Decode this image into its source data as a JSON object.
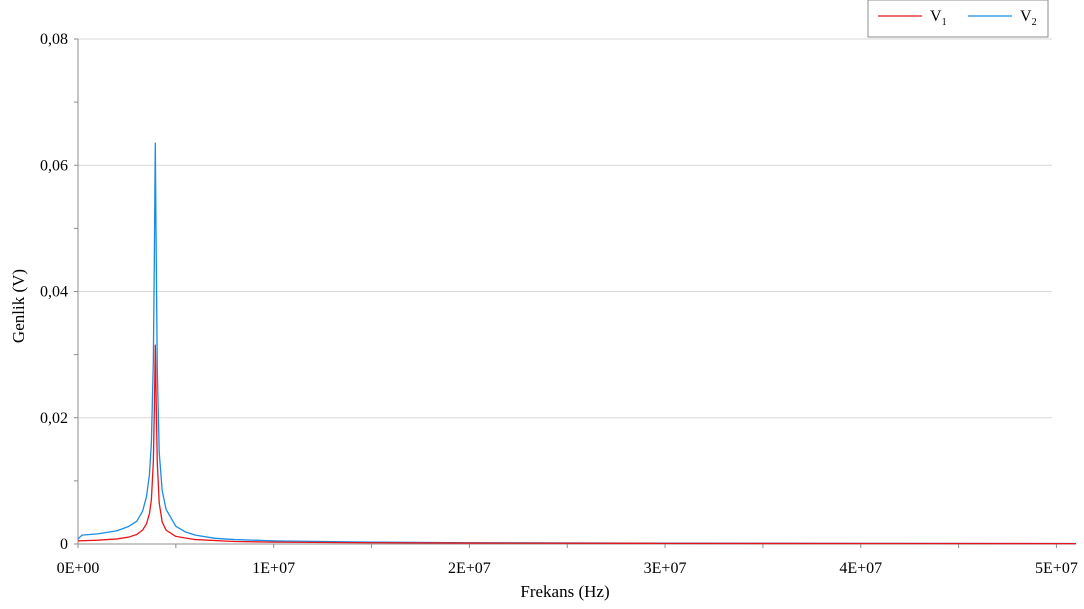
{
  "chart_data": {
    "type": "line",
    "title": "",
    "xlabel": "Frekans (Hz)",
    "ylabel": "Genlik (V)",
    "xlim": [
      0,
      51000000
    ],
    "ylim": [
      0,
      0.08
    ],
    "x_ticks": [
      0,
      10000000,
      20000000,
      30000000,
      40000000,
      50000000
    ],
    "x_tick_labels": [
      "0E+00",
      "1E+07",
      "2E+07",
      "3E+07",
      "4E+07",
      "5E+07"
    ],
    "y_ticks": [
      0,
      0.02,
      0.04,
      0.06,
      0.08
    ],
    "y_tick_labels": [
      "0",
      "0,02",
      "0,04",
      "0,06",
      "0,08"
    ],
    "grid": "horizontal",
    "legend_position": "top-right",
    "series": [
      {
        "name": "V",
        "subscript": "1",
        "color": "#e8161b",
        "x": [
          0,
          1000000,
          2000000,
          2600000,
          3000000,
          3300000,
          3500000,
          3650000,
          3750000,
          3850000,
          3900000,
          3950000,
          4000000,
          4050000,
          4150000,
          4300000,
          4500000,
          5000000,
          6000000,
          8000000,
          10000000,
          15000000,
          20000000,
          30000000,
          40000000,
          51000000
        ],
        "y": [
          0.0005,
          0.0006,
          0.0008,
          0.0011,
          0.0015,
          0.0022,
          0.0032,
          0.0048,
          0.007,
          0.013,
          0.021,
          0.0315,
          0.022,
          0.013,
          0.0065,
          0.0035,
          0.0022,
          0.0012,
          0.0007,
          0.0004,
          0.0003,
          0.0002,
          0.00015,
          0.0001,
          8e-05,
          6e-05
        ]
      },
      {
        "name": "V",
        "subscript": "2",
        "color": "#1b8ce3",
        "x": [
          0,
          200000,
          1000000,
          2000000,
          2600000,
          3000000,
          3300000,
          3500000,
          3650000,
          3750000,
          3850000,
          3900000,
          3950000,
          4000000,
          4050000,
          4150000,
          4300000,
          4500000,
          5000000,
          5500000,
          6000000,
          7000000,
          8000000,
          10000000,
          15000000,
          20000000,
          30000000,
          40000000,
          51000000
        ],
        "y": [
          0.0008,
          0.0014,
          0.0016,
          0.0021,
          0.0028,
          0.0036,
          0.0052,
          0.0075,
          0.011,
          0.016,
          0.029,
          0.045,
          0.0635,
          0.045,
          0.028,
          0.0145,
          0.0085,
          0.0055,
          0.0028,
          0.0019,
          0.0014,
          0.0009,
          0.0007,
          0.0005,
          0.0003,
          0.0002,
          0.00013,
          0.0001,
          8e-05
        ]
      }
    ]
  },
  "colors": {
    "grid": "#d9d9d9",
    "axis": "#8c8c8c"
  }
}
